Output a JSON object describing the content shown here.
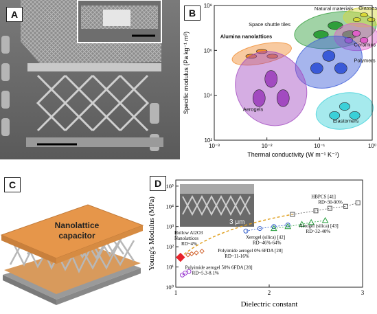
{
  "panels": {
    "a": {
      "label": "A"
    },
    "b": {
      "label": "B"
    },
    "c": {
      "label": "C",
      "capacitor_text_1": "Nanolattice",
      "capacitor_text_2": "capacitor"
    },
    "d": {
      "label": "D",
      "inset_scale": "3 μm"
    }
  },
  "chart_data": [
    {
      "type": "scatter",
      "panel": "B",
      "xlabel": "Thermal conductivity (W m⁻¹ K⁻¹)",
      "ylabel": "Specific modulus (Pa kg⁻¹ m³)",
      "xscale": "log",
      "yscale": "log",
      "xlim": [
        0.001,
        1
      ],
      "ylim": [
        100,
        100000000
      ],
      "xticks": [
        "10⁻³",
        "10⁻²",
        "10⁻¹",
        "10⁰"
      ],
      "yticks": [
        "10²",
        "10⁴",
        "10⁶",
        "10⁸"
      ],
      "annotations": [
        "Natural materials",
        "Glasses",
        "Space shuttle tiles",
        "Alumina nanolattices",
        "Ceramics",
        "Polymers",
        "Aerogels",
        "Elastomers"
      ],
      "region_colors": {
        "Alumina nanolattices": "#f08a2c",
        "Natural materials": "#2f9e3a",
        "Glasses": "#d8d838",
        "Ceramics": "#e060c8",
        "Polymers": "#3a5ad8",
        "Aerogels": "#a24ac0",
        "Elastomers": "#3ad0d8"
      },
      "regions": [
        {
          "name": "Alumina nanolattices",
          "x": 0.008,
          "y": 700000
        },
        {
          "name": "Natural materials",
          "x": 0.2,
          "y": 8000000
        },
        {
          "name": "Glasses",
          "x": 0.7,
          "y": 30000000
        },
        {
          "name": "Ceramics",
          "x": 0.5,
          "y": 4000000
        },
        {
          "name": "Polymers",
          "x": 0.15,
          "y": 300000
        },
        {
          "name": "Aerogels",
          "x": 0.012,
          "y": 20000
        },
        {
          "name": "Elastomers",
          "x": 0.3,
          "y": 2000
        }
      ]
    },
    {
      "type": "scatter",
      "panel": "D",
      "xlabel": "Dielectric constant",
      "ylabel": "Young's Modulus (MPa)",
      "yscale": "log",
      "xlim": [
        1,
        3
      ],
      "ylim": [
        1,
        200000
      ],
      "xticks": [
        "1",
        "2",
        "3"
      ],
      "yticks": [
        "10⁰",
        "10¹",
        "10²",
        "10³",
        "10⁴",
        "10⁵"
      ],
      "series": [
        {
          "name": "Hollow Al2O3 Nanolattices",
          "sub": "RD~4%",
          "color": "#e8232a",
          "marker": "diamond-filled",
          "points": [
            [
              1.05,
              30
            ]
          ]
        },
        {
          "name": "Polyimide aerogel 0% 6FDA [28]",
          "sub": "RD~11-16%",
          "color": "#d0602a",
          "marker": "diamond",
          "points": [
            [
              1.13,
              40
            ],
            [
              1.17,
              45
            ],
            [
              1.22,
              50
            ],
            [
              1.28,
              60
            ]
          ]
        },
        {
          "name": "Polyimide aerogel 50% 6FDA [28]",
          "sub": "RD~5.3-8.1%",
          "color": "#9a3ad0",
          "marker": "circle",
          "points": [
            [
              1.07,
              4
            ],
            [
              1.1,
              5
            ],
            [
              1.14,
              6
            ]
          ]
        },
        {
          "name": "Xerogel (silica) [42]",
          "sub": "RD~46%-64%",
          "color": "#2a58c8",
          "marker": "circle",
          "points": [
            [
              1.75,
              600
            ],
            [
              1.9,
              800
            ],
            [
              2.05,
              1000
            ],
            [
              2.2,
              1200
            ]
          ]
        },
        {
          "name": "Aerogel (silica) [43]",
          "sub": "RD~32-40%",
          "color": "#2aa040",
          "marker": "triangle",
          "points": [
            [
              2.05,
              800
            ],
            [
              2.2,
              1000
            ],
            [
              2.35,
              1300
            ],
            [
              2.45,
              1600
            ],
            [
              2.6,
              2000
            ]
          ]
        },
        {
          "name": "HBPCS [41]",
          "sub": "RD~30-90%",
          "color": "#555555",
          "marker": "square",
          "points": [
            [
              2.25,
              4000
            ],
            [
              2.5,
              6000
            ],
            [
              2.65,
              8000
            ],
            [
              2.82,
              10000
            ],
            [
              2.95,
              15000
            ]
          ]
        }
      ]
    }
  ]
}
